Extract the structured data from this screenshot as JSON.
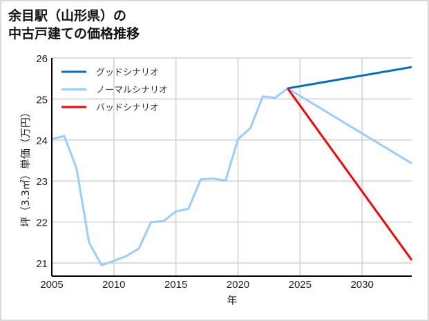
{
  "title_line1": "余目駅（山形県）の",
  "title_line2": "中古戸建ての価格推移",
  "chart_data": {
    "type": "line",
    "title": "余目駅（山形県）の中古戸建ての価格推移",
    "xlabel": "年",
    "ylabel": "坪（3.3㎡）単価（万円）",
    "xlim": [
      2005,
      2034
    ],
    "ylim": [
      20.7,
      26
    ],
    "xticks": [
      2005,
      2010,
      2015,
      2020,
      2025,
      2030
    ],
    "yticks": [
      21,
      22,
      23,
      24,
      25,
      26
    ],
    "grid": true,
    "legend_position": "upper left",
    "series": [
      {
        "name": "グッドシナリオ",
        "color": "#0070c0",
        "x": [
          2024,
          2034
        ],
        "values": [
          25.26,
          25.78
        ]
      },
      {
        "name": "ノーマルシナリオ",
        "color": "#99ccff",
        "x": [
          2005,
          2006,
          2007,
          2008,
          2009,
          2010,
          2011,
          2012,
          2013,
          2014,
          2015,
          2016,
          2017,
          2018,
          2019,
          2020,
          2021,
          2022,
          2023,
          2024,
          2034
        ],
        "values": [
          24.02,
          24.1,
          23.3,
          21.5,
          20.95,
          21.05,
          21.17,
          21.35,
          22.0,
          22.02,
          22.26,
          22.32,
          23.04,
          23.06,
          23.01,
          24.02,
          24.29,
          25.06,
          25.03,
          25.26,
          23.43
        ]
      },
      {
        "name": "バッドシナリオ",
        "color": "#ff0000",
        "x": [
          2024,
          2034
        ],
        "values": [
          25.26,
          21.07
        ]
      }
    ]
  }
}
